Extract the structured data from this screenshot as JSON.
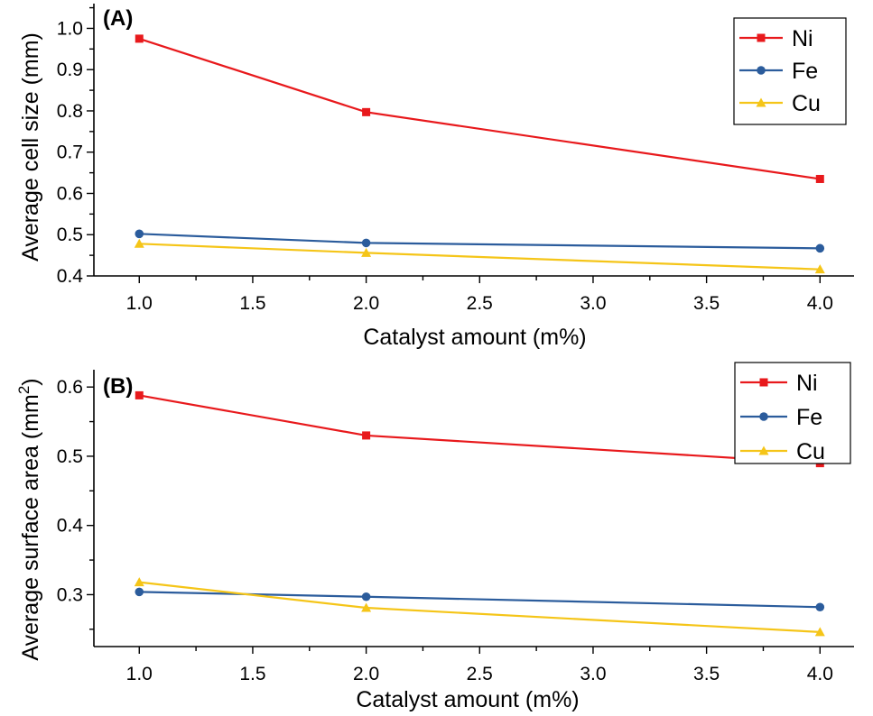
{
  "chart_data": [
    {
      "type": "line",
      "panel_label": "(A)",
      "xlabel": "Catalyst amount (m%)",
      "ylabel": "Average cell size (mm)",
      "ylabel_sup": "",
      "ylabel_tail": "",
      "xlim": [
        0.8,
        4.15
      ],
      "ylim": [
        0.4,
        1.06
      ],
      "xticks": [
        1.0,
        1.5,
        2.0,
        2.5,
        3.0,
        3.5,
        4.0
      ],
      "xtick_labels": [
        "1.0",
        "1.5",
        "2.0",
        "2.5",
        "3.0",
        "3.5",
        "4.0"
      ],
      "yticks": [
        0.4,
        0.5,
        0.6,
        0.7,
        0.8,
        0.9,
        1.0
      ],
      "ytick_labels": [
        "0.4",
        "0.5",
        "0.6",
        "0.7",
        "0.8",
        "0.9",
        "1.0"
      ],
      "x": [
        1.0,
        2.0,
        4.0
      ],
      "legend_position": "top-right",
      "series": [
        {
          "name": "Ni",
          "color": "#e8191c",
          "marker": "square",
          "values": [
            0.975,
            0.797,
            0.635
          ]
        },
        {
          "name": "Fe",
          "color": "#2b5c9c",
          "marker": "circle",
          "values": [
            0.502,
            0.48,
            0.467
          ]
        },
        {
          "name": "Cu",
          "color": "#f5c518",
          "marker": "triangle",
          "values": [
            0.478,
            0.456,
            0.416
          ]
        }
      ]
    },
    {
      "type": "line",
      "panel_label": "(B)",
      "xlabel": "Catalyst amount (m%)",
      "ylabel": "Average surface area (mm",
      "ylabel_sup": "2",
      "ylabel_tail": ")",
      "xlim": [
        0.8,
        4.15
      ],
      "ylim": [
        0.225,
        0.625
      ],
      "xticks": [
        1.0,
        1.5,
        2.0,
        2.5,
        3.0,
        3.5,
        4.0
      ],
      "xtick_labels": [
        "1.0",
        "1.5",
        "2.0",
        "2.5",
        "3.0",
        "3.5",
        "4.0"
      ],
      "yticks": [
        0.3,
        0.4,
        0.5,
        0.6
      ],
      "ytick_labels": [
        "0.3",
        "0.4",
        "0.5",
        "0.6"
      ],
      "x": [
        1.0,
        2.0,
        4.0
      ],
      "legend_position": "top-right",
      "series": [
        {
          "name": "Ni",
          "color": "#e8191c",
          "marker": "square",
          "values": [
            0.588,
            0.53,
            0.49
          ]
        },
        {
          "name": "Fe",
          "color": "#2b5c9c",
          "marker": "circle",
          "values": [
            0.304,
            0.297,
            0.282
          ]
        },
        {
          "name": "Cu",
          "color": "#f5c518",
          "marker": "triangle",
          "values": [
            0.318,
            0.281,
            0.246
          ]
        }
      ]
    }
  ]
}
